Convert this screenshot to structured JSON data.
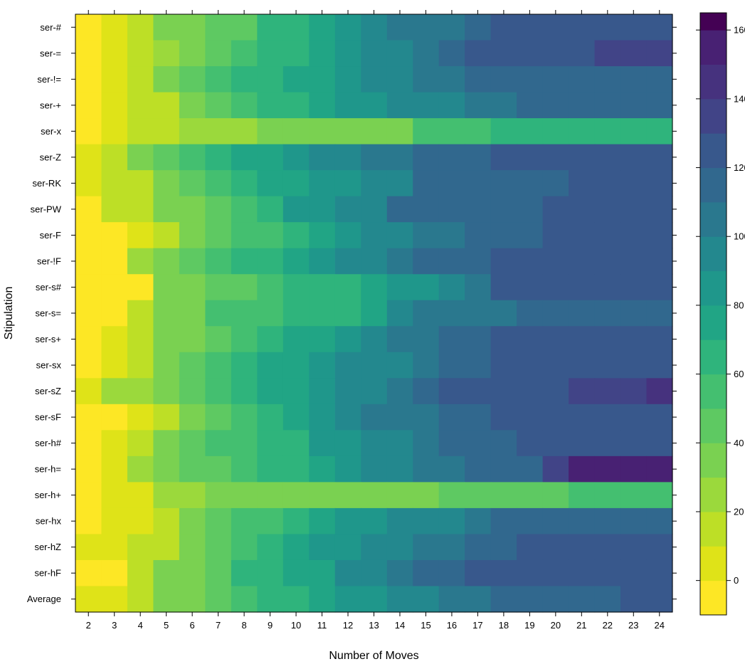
{
  "chart_data": {
    "type": "heatmap",
    "title": "",
    "xlabel": "Number of Moves",
    "ylabel": "Stipulation",
    "x": [
      "2",
      "3",
      "4",
      "5",
      "6",
      "7",
      "8",
      "9",
      "10",
      "11",
      "12",
      "13",
      "14",
      "15",
      "16",
      "17",
      "18",
      "19",
      "20",
      "21",
      "22",
      "23",
      "24"
    ],
    "y": [
      "ser-#",
      "ser-=",
      "ser-!=",
      "ser-+",
      "ser-x",
      "ser-Z",
      "ser-RK",
      "ser-PW",
      "ser-F",
      "ser-!F",
      "ser-s#",
      "ser-s=",
      "ser-s+",
      "ser-sx",
      "ser-sZ",
      "ser-sF",
      "ser-h#",
      "ser-h=",
      "ser-h+",
      "ser-hx",
      "ser-hZ",
      "ser-hF",
      "Average"
    ],
    "values": [
      [
        -5,
        5,
        15,
        35,
        35,
        45,
        45,
        65,
        65,
        75,
        85,
        95,
        105,
        105,
        105,
        115,
        125,
        125,
        125,
        125,
        125,
        125,
        125
      ],
      [
        -5,
        5,
        15,
        25,
        35,
        45,
        55,
        65,
        65,
        75,
        85,
        95,
        95,
        105,
        115,
        125,
        125,
        125,
        125,
        125,
        135,
        135,
        135
      ],
      [
        -5,
        5,
        15,
        35,
        45,
        55,
        65,
        65,
        75,
        75,
        85,
        95,
        95,
        105,
        105,
        115,
        115,
        115,
        115,
        115,
        115,
        115,
        115
      ],
      [
        -5,
        5,
        15,
        15,
        35,
        45,
        55,
        65,
        65,
        75,
        85,
        85,
        95,
        95,
        95,
        105,
        105,
        115,
        115,
        115,
        115,
        115,
        115
      ],
      [
        -5,
        5,
        15,
        15,
        25,
        25,
        25,
        35,
        35,
        35,
        35,
        35,
        35,
        55,
        55,
        55,
        65,
        65,
        65,
        65,
        65,
        65,
        65
      ],
      [
        5,
        15,
        35,
        45,
        55,
        65,
        75,
        75,
        85,
        95,
        95,
        105,
        105,
        115,
        115,
        115,
        125,
        125,
        125,
        125,
        125,
        125,
        125
      ],
      [
        5,
        15,
        15,
        35,
        45,
        55,
        65,
        75,
        75,
        85,
        85,
        95,
        95,
        115,
        115,
        115,
        115,
        115,
        115,
        125,
        125,
        125,
        125
      ],
      [
        -5,
        15,
        15,
        35,
        35,
        45,
        55,
        65,
        85,
        85,
        95,
        95,
        115,
        115,
        115,
        115,
        115,
        115,
        125,
        125,
        125,
        125,
        125
      ],
      [
        -5,
        -5,
        5,
        15,
        35,
        45,
        55,
        55,
        65,
        75,
        85,
        95,
        95,
        105,
        105,
        115,
        115,
        115,
        125,
        125,
        125,
        125,
        125
      ],
      [
        -5,
        -5,
        25,
        35,
        45,
        55,
        65,
        65,
        75,
        85,
        95,
        95,
        105,
        115,
        115,
        115,
        125,
        125,
        125,
        125,
        125,
        125,
        125
      ],
      [
        -5,
        -5,
        -5,
        35,
        35,
        45,
        45,
        55,
        65,
        65,
        65,
        75,
        85,
        85,
        95,
        105,
        125,
        125,
        125,
        125,
        125,
        125,
        125
      ],
      [
        -5,
        -5,
        15,
        35,
        35,
        55,
        55,
        55,
        65,
        65,
        65,
        75,
        95,
        105,
        105,
        105,
        105,
        115,
        115,
        115,
        115,
        115,
        115
      ],
      [
        -5,
        5,
        15,
        35,
        35,
        45,
        55,
        65,
        75,
        75,
        85,
        95,
        105,
        105,
        115,
        115,
        125,
        125,
        125,
        125,
        125,
        125,
        125
      ],
      [
        -5,
        5,
        15,
        35,
        45,
        55,
        65,
        75,
        75,
        85,
        95,
        95,
        95,
        105,
        115,
        115,
        125,
        125,
        125,
        125,
        125,
        125,
        125
      ],
      [
        5,
        25,
        25,
        35,
        45,
        55,
        65,
        75,
        75,
        85,
        95,
        95,
        105,
        115,
        125,
        125,
        125,
        125,
        125,
        135,
        135,
        135,
        145
      ],
      [
        -5,
        -5,
        5,
        15,
        35,
        45,
        55,
        65,
        75,
        85,
        95,
        105,
        105,
        105,
        115,
        115,
        125,
        125,
        125,
        125,
        125,
        125,
        125
      ],
      [
        -5,
        5,
        15,
        35,
        45,
        55,
        55,
        65,
        65,
        85,
        85,
        95,
        95,
        105,
        115,
        115,
        115,
        125,
        125,
        125,
        125,
        125,
        125
      ],
      [
        -5,
        5,
        25,
        35,
        45,
        45,
        55,
        65,
        65,
        75,
        85,
        95,
        95,
        105,
        105,
        115,
        115,
        115,
        135,
        155,
        155,
        155,
        155
      ],
      [
        -5,
        5,
        5,
        25,
        25,
        35,
        35,
        35,
        35,
        35,
        35,
        35,
        35,
        35,
        45,
        45,
        45,
        45,
        45,
        55,
        55,
        55,
        55
      ],
      [
        -5,
        5,
        5,
        15,
        35,
        45,
        55,
        55,
        65,
        75,
        85,
        85,
        95,
        95,
        95,
        105,
        115,
        115,
        115,
        115,
        115,
        115,
        115
      ],
      [
        5,
        5,
        15,
        15,
        35,
        45,
        55,
        65,
        75,
        85,
        85,
        95,
        95,
        105,
        105,
        115,
        115,
        125,
        125,
        125,
        125,
        125,
        125
      ],
      [
        -5,
        -5,
        15,
        35,
        35,
        45,
        65,
        65,
        75,
        75,
        95,
        95,
        105,
        115,
        115,
        125,
        125,
        125,
        125,
        125,
        125,
        125,
        125
      ],
      [
        5,
        5,
        15,
        35,
        35,
        45,
        55,
        65,
        65,
        75,
        85,
        85,
        95,
        95,
        105,
        105,
        115,
        115,
        115,
        115,
        115,
        125,
        125
      ]
    ],
    "colorbar": {
      "min": -10,
      "max": 165,
      "ticks": [
        0,
        20,
        40,
        60,
        80,
        100,
        120,
        140,
        160
      ],
      "bin_edges": [
        -10,
        0,
        10,
        20,
        30,
        40,
        50,
        60,
        70,
        80,
        90,
        100,
        110,
        120,
        130,
        140,
        150,
        160,
        165
      ],
      "colors": [
        "#fde725",
        "#dfe318",
        "#bddf26",
        "#9bd93c",
        "#7ad151",
        "#5ec962",
        "#44bf70",
        "#2fb47c",
        "#21a585",
        "#1f978b",
        "#23888e",
        "#2a788e",
        "#31688e",
        "#38588c",
        "#414487",
        "#46327e",
        "#482173",
        "#440154"
      ]
    }
  }
}
